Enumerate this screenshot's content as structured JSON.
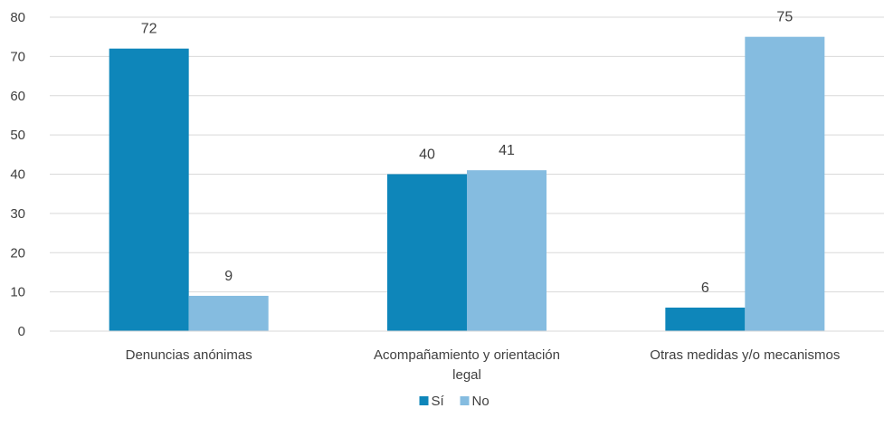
{
  "chart_data": {
    "type": "bar",
    "categories": [
      [
        "Denuncias anónimas"
      ],
      [
        "Acompañamiento y orientación",
        "legal"
      ],
      [
        "Otras medidas y/o mecanismos"
      ]
    ],
    "series": [
      {
        "name": "Sí",
        "values": [
          72,
          40,
          6
        ],
        "color": "#0e86ba"
      },
      {
        "name": "No",
        "values": [
          9,
          41,
          75
        ],
        "color": "#85bce0"
      }
    ],
    "ylim": [
      0,
      80
    ],
    "yticks": [
      0,
      10,
      20,
      30,
      40,
      50,
      60,
      70,
      80
    ],
    "grid": true,
    "legend_position": "bottom",
    "data_labels": true
  }
}
